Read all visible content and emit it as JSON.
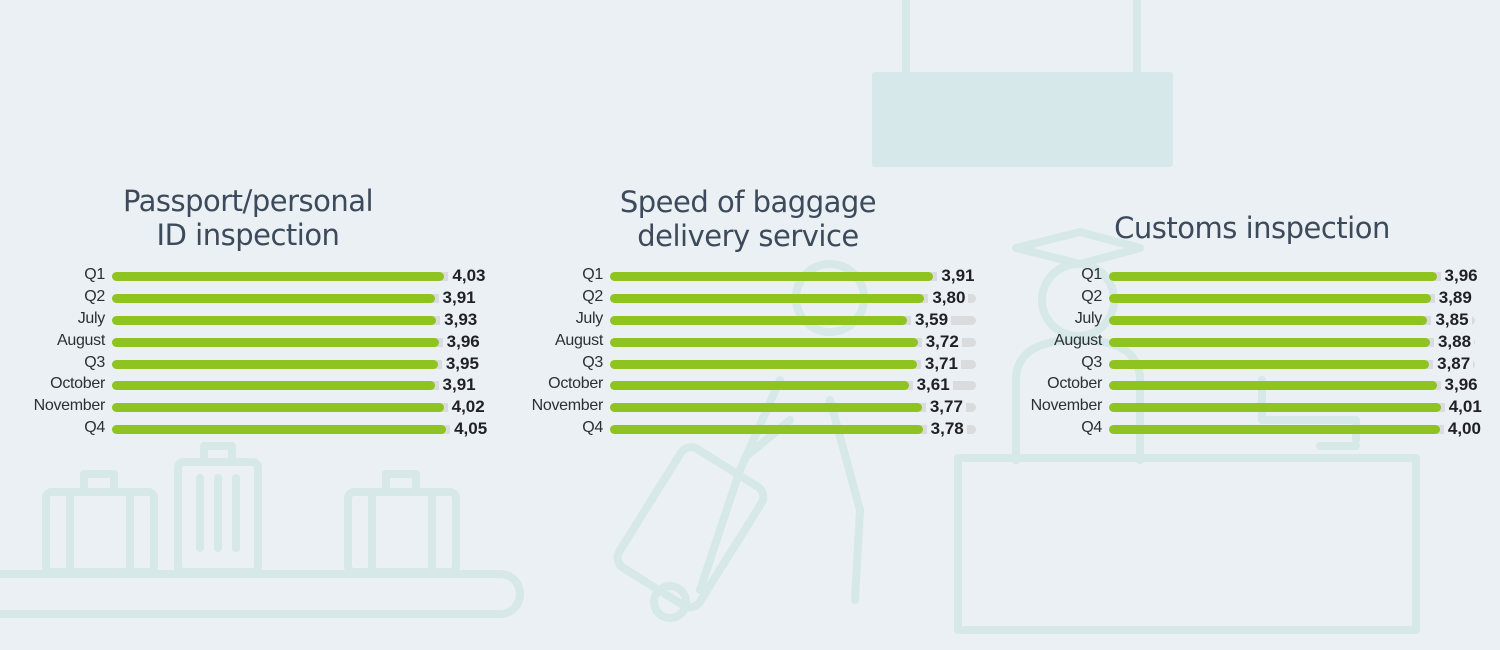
{
  "chart_data": [
    {
      "type": "bar",
      "orientation": "horizontal",
      "title": "Passport/personal ID inspection",
      "title_lines": [
        "Passport/personal",
        "ID inspection"
      ],
      "categories": [
        "Q1",
        "Q2",
        "July",
        "August",
        "Q3",
        "October",
        "November",
        "Q4"
      ],
      "values": [
        4.03,
        3.91,
        3.93,
        3.96,
        3.95,
        3.91,
        4.02,
        4.05
      ],
      "value_labels": [
        "4,03",
        "3,91",
        "3,93",
        "3,96",
        "3,95",
        "3,91",
        "4,02",
        "4,05"
      ],
      "xlim": [
        0,
        5
      ]
    },
    {
      "type": "bar",
      "orientation": "horizontal",
      "title": "Speed of baggage delivery service",
      "title_lines": [
        "Speed of baggage",
        "delivery service"
      ],
      "categories": [
        "Q1",
        "Q2",
        "July",
        "August",
        "Q3",
        "October",
        "November",
        "Q4"
      ],
      "values": [
        3.91,
        3.8,
        3.59,
        3.72,
        3.71,
        3.61,
        3.77,
        3.78
      ],
      "value_labels": [
        "3,91",
        "3,80",
        "3,59",
        "3,72",
        "3,71",
        "3,61",
        "3,77",
        "3,78"
      ],
      "xlim": [
        0,
        5
      ]
    },
    {
      "type": "bar",
      "orientation": "horizontal",
      "title": "Customs inspection",
      "title_lines": [
        "Customs inspection"
      ],
      "categories": [
        "Q1",
        "Q2",
        "July",
        "August",
        "Q3",
        "October",
        "November",
        "Q4"
      ],
      "values": [
        3.96,
        3.89,
        3.85,
        3.88,
        3.87,
        3.96,
        4.01,
        4.0
      ],
      "value_labels": [
        "3,96",
        "3,89",
        "3,85",
        "3,88",
        "3,87",
        "3,96",
        "4,01",
        "4,00"
      ],
      "xlim": [
        0,
        5
      ]
    }
  ],
  "colors": {
    "bar": "#8fc31f",
    "track": "#d9dbdc",
    "background": "#eaf0f3",
    "illustration": "#d6e8e8"
  },
  "background_icons": [
    "baggage-carousel-icon",
    "rolling-suitcase-icon",
    "hanging-sign-icon",
    "customs-officer-icon",
    "customs-desk-icon"
  ]
}
